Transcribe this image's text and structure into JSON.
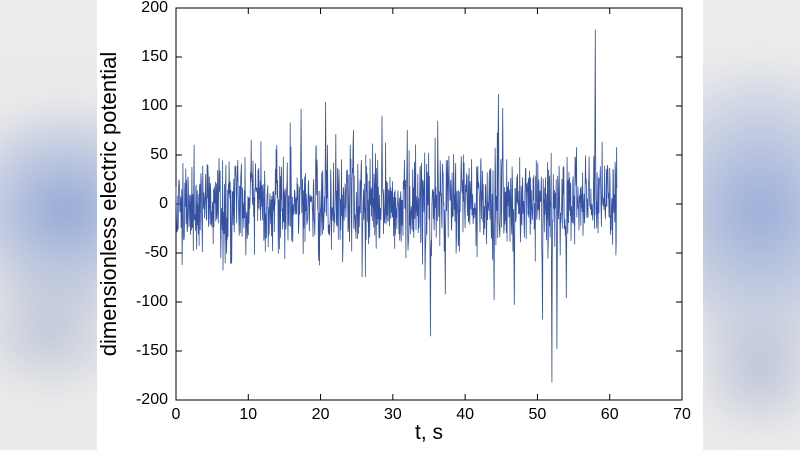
{
  "frame": {
    "background_color": "#e9e9e9",
    "glow_color": "#6987d0",
    "panel_color": "#ffffff"
  },
  "chart_data": {
    "type": "line",
    "title": "",
    "xlabel": "t, s",
    "ylabel": "dimensionless electric potential",
    "xlim": [
      0,
      70
    ],
    "ylim": [
      -200,
      200
    ],
    "x_ticks": [
      0,
      10,
      20,
      30,
      40,
      50,
      60,
      70
    ],
    "y_ticks": [
      -200,
      -150,
      -100,
      -50,
      0,
      50,
      100,
      150,
      200
    ],
    "grid": false,
    "legend": null,
    "line_color": "#3551a2",
    "axis_color": "#000000",
    "signal": {
      "description": "dense zero-mean noise waveform from t=0 to t=61 s",
      "t_start": 0,
      "t_end": 61,
      "dt": 0.05,
      "seed": 1337,
      "noise_std": 26,
      "clip": [
        -92,
        92
      ],
      "spikes": [
        {
          "t": 17.3,
          "value": 97
        },
        {
          "t": 20.7,
          "value": 104
        },
        {
          "t": 28.5,
          "value": 90
        },
        {
          "t": 35.2,
          "value": -135
        },
        {
          "t": 44.0,
          "value": -98
        },
        {
          "t": 44.6,
          "value": 112
        },
        {
          "t": 45.2,
          "value": 98
        },
        {
          "t": 46.8,
          "value": -103
        },
        {
          "t": 50.7,
          "value": -118
        },
        {
          "t": 52.0,
          "value": -182
        },
        {
          "t": 52.7,
          "value": -148
        },
        {
          "t": 54.0,
          "value": -96
        },
        {
          "t": 58.0,
          "value": 178
        }
      ]
    }
  }
}
